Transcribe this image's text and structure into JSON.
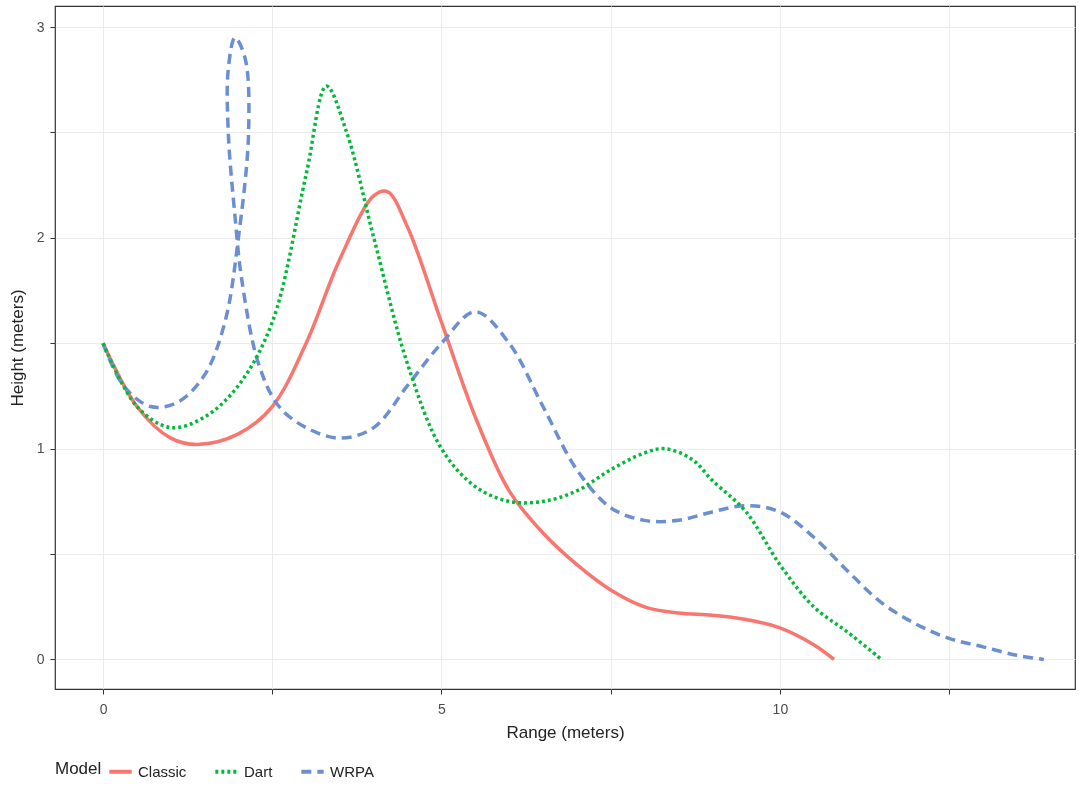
{
  "chart_data": {
    "type": "line",
    "xlabel": "Range (meters)",
    "ylabel": "Height (meters)",
    "legend_title": "Model",
    "legend": "bottom",
    "grid": true,
    "xlim": [
      -0.71,
      14.36
    ],
    "ylim": [
      -0.14,
      3.1
    ],
    "xticks": [
      0,
      {
        "value": 2.5,
        "label": null
      },
      5,
      {
        "value": 7.5,
        "label": null
      },
      10,
      {
        "value": 12.5,
        "label": null
      }
    ],
    "yticks": [
      0,
      {
        "value": 0.5,
        "label": null
      },
      1,
      {
        "value": 1.5,
        "label": null
      },
      2,
      {
        "value": 2.5,
        "label": null
      },
      3
    ],
    "series": [
      {
        "name": "Classic",
        "color": "#f8766d",
        "line_style": "solid",
        "x": [
          0,
          0.5,
          1,
          1.4,
          2,
          2.5,
          3,
          3.5,
          4,
          4.2,
          4.5,
          5,
          5.5,
          6,
          6.5,
          7,
          7.5,
          8,
          8.5,
          9,
          9.5,
          10,
          10.5,
          10.8
        ],
        "values": [
          1.5,
          1.2,
          1.05,
          1.02,
          1.07,
          1.2,
          1.5,
          1.9,
          2.2,
          2.22,
          2.05,
          1.6,
          1.15,
          0.8,
          0.6,
          0.45,
          0.33,
          0.25,
          0.22,
          0.21,
          0.19,
          0.15,
          0.07,
          0
        ]
      },
      {
        "name": "Dart",
        "color": "#00ba38",
        "line_style": "dotted",
        "x": [
          0,
          0.5,
          1,
          1.5,
          2,
          2.5,
          3,
          3.3,
          3.6,
          4,
          4.5,
          5,
          5.5,
          6,
          6.5,
          7,
          7.5,
          8,
          8.3,
          8.7,
          9,
          9.5,
          10,
          10.5,
          11,
          11.5
        ],
        "values": [
          1.5,
          1.2,
          1.1,
          1.15,
          1.3,
          1.6,
          2.3,
          2.72,
          2.5,
          2,
          1.4,
          1,
          0.82,
          0.75,
          0.75,
          0.8,
          0.9,
          0.98,
          1,
          0.95,
          0.85,
          0.7,
          0.45,
          0.25,
          0.13,
          0
        ]
      },
      {
        "name": "WRPA",
        "color": "#6b8fd0",
        "line_style": "dashed",
        "x": [
          0,
          0.3,
          0.7,
          1.1,
          1.5,
          1.8,
          2,
          2.15,
          2.1,
          1.95,
          1.85,
          1.85,
          1.95,
          2.05,
          2.3,
          2.6,
          3,
          3.5,
          4,
          4.5,
          5,
          5.5,
          6,
          6.5,
          7,
          7.5,
          8,
          8.5,
          9,
          9.5,
          10,
          10.5,
          11,
          11.5,
          12,
          12.5,
          13,
          13.5,
          13.9
        ],
        "values": [
          1.5,
          1.3,
          1.2,
          1.22,
          1.35,
          1.6,
          2,
          2.5,
          2.85,
          2.95,
          2.8,
          2.5,
          2.1,
          1.8,
          1.4,
          1.2,
          1.1,
          1.05,
          1.1,
          1.3,
          1.5,
          1.65,
          1.5,
          1.2,
          0.9,
          0.72,
          0.66,
          0.66,
          0.7,
          0.73,
          0.7,
          0.58,
          0.42,
          0.27,
          0.17,
          0.1,
          0.06,
          0.02,
          0
        ]
      }
    ]
  }
}
